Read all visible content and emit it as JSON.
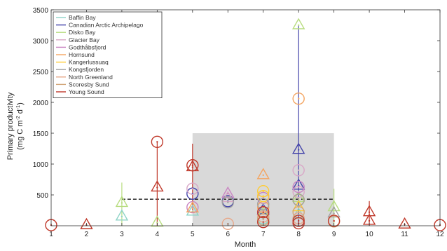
{
  "chart_data": {
    "type": "scatter",
    "xlabel": "Month",
    "ylabel_line1": "Primary productivity",
    "ylabel_line2": "(mg C m",
    "ylabel_sup1": "-2",
    "ylabel_mid": " d",
    "ylabel_sup2": "-1",
    "ylabel_end": ")",
    "xlim": [
      1,
      12
    ],
    "ylim": [
      0,
      3500
    ],
    "xticks": [
      "1",
      "2",
      "3",
      "4",
      "5",
      "6",
      "7",
      "8",
      "9",
      "10",
      "11",
      "12"
    ],
    "yticks": [
      "500",
      "1000",
      "1500",
      "2000",
      "2500",
      "3000",
      "3500"
    ],
    "legend_position": "top-left",
    "grid": false,
    "shaded_region": {
      "x": [
        5,
        9
      ],
      "y": [
        0,
        1500
      ],
      "color": "#d9d9d9"
    },
    "reference_line": {
      "x": [
        3,
        9
      ],
      "y": 430,
      "style": "dashed",
      "color": "#000000"
    },
    "series": [
      {
        "name": "Baffin Bay",
        "color": "#8dd3c7",
        "points": [
          {
            "x": 3,
            "y": 150,
            "m": "tri"
          },
          {
            "x": 5,
            "y": 230,
            "m": "tri"
          },
          {
            "x": 7,
            "y": 120,
            "m": "circ"
          },
          {
            "x": 8,
            "y": 180,
            "m": "tri"
          }
        ]
      },
      {
        "name": "Canadian Arctic Archipelago",
        "color": "#4444aa",
        "points": [
          {
            "x": 5,
            "y": 520,
            "m": "circ"
          },
          {
            "x": 6,
            "y": 400,
            "m": "circ"
          },
          {
            "x": 7,
            "y": 250,
            "m": "tri"
          },
          {
            "x": 8,
            "y": 1230,
            "m": "tri"
          },
          {
            "x": 8,
            "y": 650,
            "m": "tri"
          }
        ]
      },
      {
        "name": "Disko Bay",
        "color": "#b7dc7f",
        "points": [
          {
            "x": 3,
            "y": 370,
            "m": "tri"
          },
          {
            "x": 4,
            "y": 50,
            "m": "tri"
          },
          {
            "x": 7,
            "y": 200,
            "m": "tri"
          },
          {
            "x": 8,
            "y": 3250,
            "m": "tri"
          },
          {
            "x": 8,
            "y": 450,
            "m": "tri"
          },
          {
            "x": 9,
            "y": 300,
            "m": "tri"
          }
        ]
      },
      {
        "name": "Glacier Bay",
        "color": "#d9a7c7",
        "points": [
          {
            "x": 5,
            "y": 600,
            "m": "circ"
          },
          {
            "x": 6,
            "y": 450,
            "m": "tri"
          },
          {
            "x": 8,
            "y": 900,
            "m": "circ"
          },
          {
            "x": 8,
            "y": 550,
            "m": "circ"
          }
        ]
      },
      {
        "name": "Godthåbsfjord",
        "color": "#c985c2",
        "points": [
          {
            "x": 6,
            "y": 520,
            "m": "tri"
          },
          {
            "x": 7,
            "y": 450,
            "m": "circ"
          },
          {
            "x": 8,
            "y": 630,
            "m": "circ"
          },
          {
            "x": 5,
            "y": 300,
            "m": "circ"
          }
        ]
      },
      {
        "name": "Hornsund",
        "color": "#f4a460",
        "points": [
          {
            "x": 5,
            "y": 280,
            "m": "tri"
          },
          {
            "x": 7,
            "y": 820,
            "m": "tri"
          },
          {
            "x": 8,
            "y": 2060,
            "m": "circ"
          },
          {
            "x": 7,
            "y": 300,
            "m": "circ"
          }
        ]
      },
      {
        "name": "Kangerlussuaq",
        "color": "#ffcc33",
        "points": [
          {
            "x": 7,
            "y": 560,
            "m": "circ"
          },
          {
            "x": 7,
            "y": 480,
            "m": "circ"
          },
          {
            "x": 8,
            "y": 420,
            "m": "circ"
          },
          {
            "x": 8,
            "y": 300,
            "m": "tri"
          }
        ]
      },
      {
        "name": "Kongsfjorden",
        "color": "#a0a0a0",
        "points": [
          {
            "x": 6,
            "y": 380,
            "m": "circ"
          },
          {
            "x": 7,
            "y": 350,
            "m": "circ"
          },
          {
            "x": 8,
            "y": 420,
            "m": "circ"
          },
          {
            "x": 9,
            "y": 200,
            "m": "tri"
          }
        ]
      },
      {
        "name": "North Greenland",
        "color": "#e7a88a",
        "points": [
          {
            "x": 6,
            "y": 30,
            "m": "circ"
          },
          {
            "x": 7,
            "y": 150,
            "m": "circ"
          },
          {
            "x": 8,
            "y": 120,
            "m": "circ"
          }
        ]
      },
      {
        "name": "Scoresby Sund",
        "color": "#d2a679",
        "points": [
          {
            "x": 7,
            "y": 100,
            "m": "circ"
          },
          {
            "x": 8,
            "y": 220,
            "m": "circ"
          },
          {
            "x": 9,
            "y": 70,
            "m": "circ"
          }
        ]
      },
      {
        "name": "Young Sound",
        "color": "#c0392b",
        "points": [
          {
            "x": 1,
            "y": 10,
            "m": "circ"
          },
          {
            "x": 2,
            "y": 10,
            "m": "tri"
          },
          {
            "x": 4,
            "y": 1360,
            "m": "circ"
          },
          {
            "x": 4,
            "y": 620,
            "m": "tri"
          },
          {
            "x": 5,
            "y": 980,
            "m": "circ"
          },
          {
            "x": 5,
            "y": 950,
            "m": "tri"
          },
          {
            "x": 7,
            "y": 220,
            "m": "circ"
          },
          {
            "x": 7,
            "y": 60,
            "m": "circ"
          },
          {
            "x": 8,
            "y": 40,
            "m": "circ"
          },
          {
            "x": 8,
            "y": 80,
            "m": "circ"
          },
          {
            "x": 9,
            "y": 80,
            "m": "circ"
          },
          {
            "x": 10,
            "y": 220,
            "m": "tri"
          },
          {
            "x": 10,
            "y": 80,
            "m": "tri"
          },
          {
            "x": 11,
            "y": 20,
            "m": "tri"
          },
          {
            "x": 12,
            "y": 10,
            "m": "circ"
          }
        ]
      }
    ],
    "error_bars": [
      {
        "x": 4,
        "y": 1360,
        "lo": 0,
        "hi": 1360,
        "color": "#c0392b"
      },
      {
        "x": 5,
        "y": 980,
        "lo": 250,
        "hi": 1330,
        "color": "#c0392b"
      },
      {
        "x": 3,
        "y": 370,
        "lo": 0,
        "hi": 700,
        "color": "#b7dc7f"
      },
      {
        "x": 9,
        "y": 300,
        "lo": 0,
        "hi": 600,
        "color": "#b7dc7f"
      },
      {
        "x": 10,
        "y": 220,
        "lo": 0,
        "hi": 400,
        "color": "#c0392b"
      },
      {
        "x": 8,
        "y": 650,
        "lo": 0,
        "hi": 3250,
        "color": "#4444aa"
      }
    ]
  }
}
